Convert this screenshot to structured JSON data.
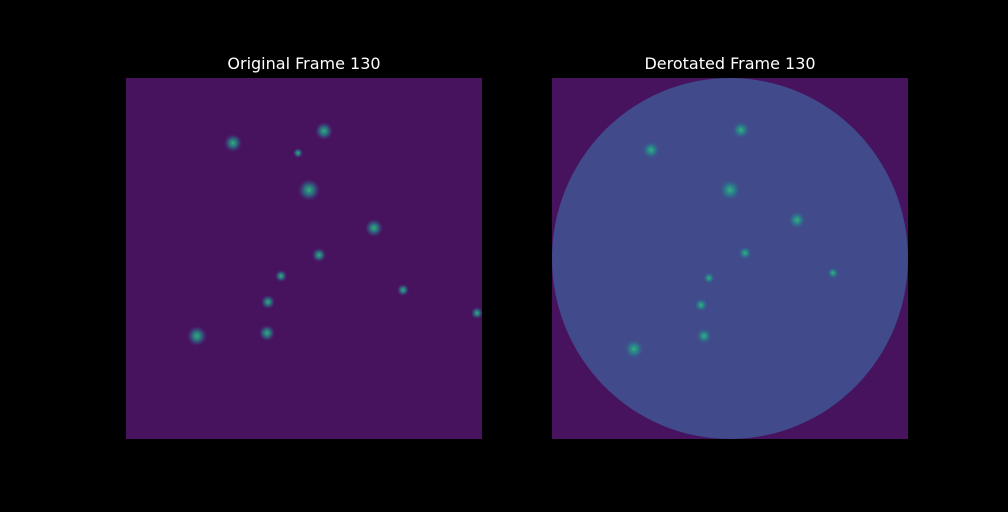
{
  "panels": [
    {
      "title": "Original Frame 130"
    },
    {
      "title": "Derotated Frame 130"
    }
  ]
}
